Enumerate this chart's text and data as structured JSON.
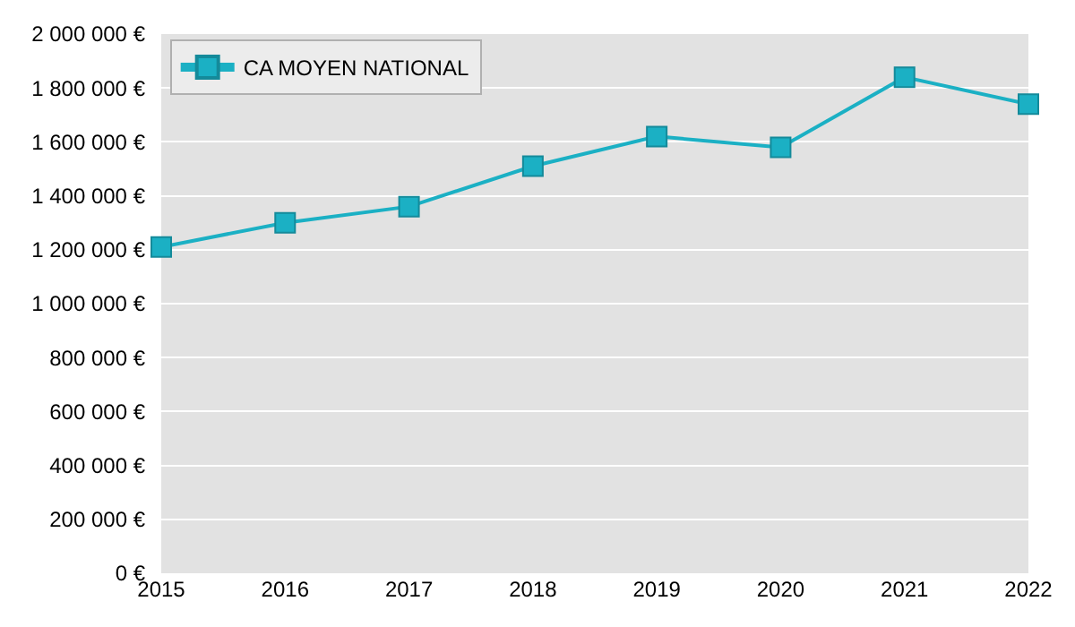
{
  "chart_data": {
    "type": "line",
    "x": [
      2015,
      2016,
      2017,
      2018,
      2019,
      2020,
      2021,
      2022
    ],
    "series": [
      {
        "name": "CA MOYEN NATIONAL",
        "color": "#1bb0c4",
        "values": [
          1210000,
          1300000,
          1360000,
          1510000,
          1620000,
          1580000,
          1840000,
          1740000
        ]
      }
    ],
    "xlim": [
      2015,
      2022
    ],
    "xticks": [
      2015,
      2016,
      2017,
      2018,
      2019,
      2020,
      2021,
      2022
    ],
    "ylim": [
      0,
      2000000
    ],
    "yticks": [
      {
        "value": 0,
        "label": "0 €"
      },
      {
        "value": 200000,
        "label": "200 000 €"
      },
      {
        "value": 400000,
        "label": "400 000 €"
      },
      {
        "value": 600000,
        "label": "600 000 €"
      },
      {
        "value": 800000,
        "label": "800 000 €"
      },
      {
        "value": 1000000,
        "label": "1 000 000 €"
      },
      {
        "value": 1200000,
        "label": "1 200 000 €"
      },
      {
        "value": 1400000,
        "label": "1 400 000 €"
      },
      {
        "value": 1600000,
        "label": "1 600 000 €"
      },
      {
        "value": 1800000,
        "label": "1 800 000 €"
      },
      {
        "value": 2000000,
        "label": "2 000 000 €"
      }
    ],
    "grid": "y",
    "legend": "top left",
    "marker": "square",
    "line_style": "solid"
  }
}
